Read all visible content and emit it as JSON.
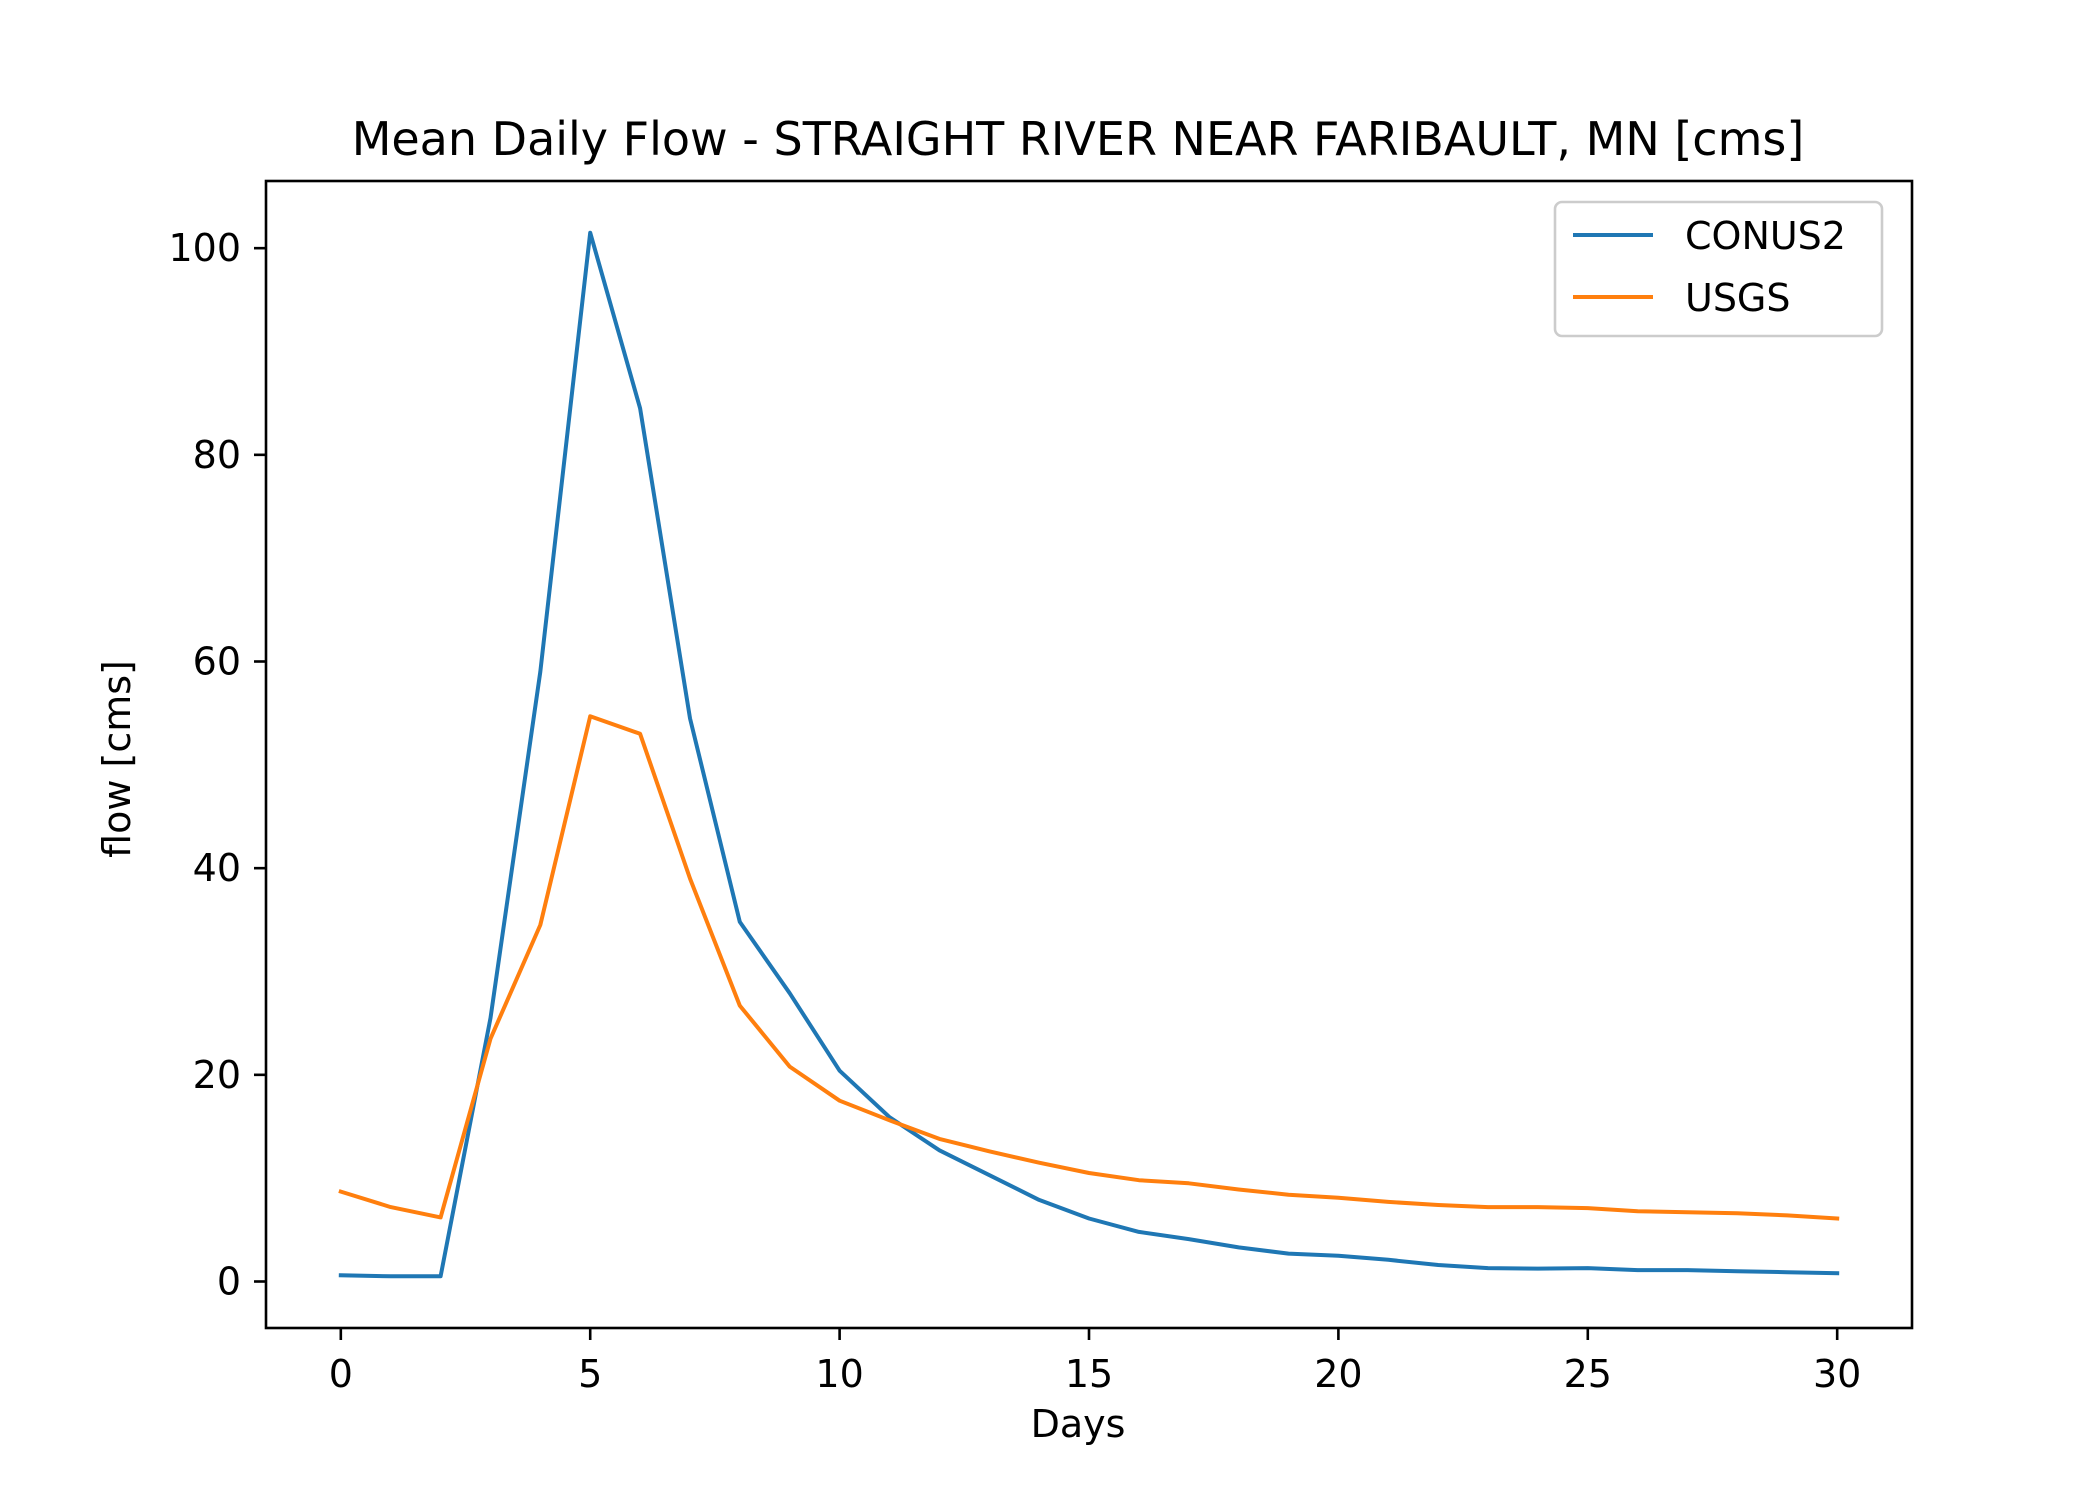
{
  "chart_data": {
    "type": "line",
    "title": "Mean Daily Flow - STRAIGHT RIVER NEAR FARIBAULT, MN [cms]",
    "xlabel": "Days",
    "ylabel": "flow [cms]",
    "xlim": [
      -1.5,
      31.5
    ],
    "ylim": [
      -4.5,
      106.5
    ],
    "xticks": [
      0,
      5,
      10,
      15,
      20,
      25,
      30
    ],
    "yticks": [
      0,
      20,
      40,
      60,
      80,
      100
    ],
    "grid": false,
    "legend_position": "top-right",
    "x": [
      0,
      1,
      2,
      3,
      4,
      5,
      6,
      7,
      8,
      9,
      10,
      11,
      12,
      13,
      14,
      15,
      16,
      17,
      18,
      19,
      20,
      21,
      22,
      23,
      24,
      25,
      26,
      27,
      28,
      29,
      30
    ],
    "series": [
      {
        "name": "CONUS2",
        "color": "#1f77b4",
        "values": [
          0.6,
          0.5,
          0.5,
          25.5,
          59.0,
          101.5,
          84.5,
          54.5,
          34.8,
          27.9,
          20.4,
          15.9,
          12.7,
          10.3,
          7.9,
          6.1,
          4.8,
          4.1,
          3.3,
          2.7,
          2.5,
          2.1,
          1.6,
          1.3,
          1.25,
          1.3,
          1.1,
          1.1,
          1.0,
          0.9,
          0.8
        ]
      },
      {
        "name": "USGS",
        "color": "#ff7f0e",
        "values": [
          8.7,
          7.2,
          6.2,
          23.5,
          34.5,
          54.7,
          53.0,
          39.0,
          26.7,
          20.8,
          17.5,
          15.6,
          13.8,
          12.6,
          11.5,
          10.5,
          9.8,
          9.5,
          8.9,
          8.4,
          8.1,
          7.7,
          7.4,
          7.2,
          7.2,
          7.1,
          6.8,
          6.7,
          6.6,
          6.4,
          6.1
        ]
      }
    ]
  }
}
